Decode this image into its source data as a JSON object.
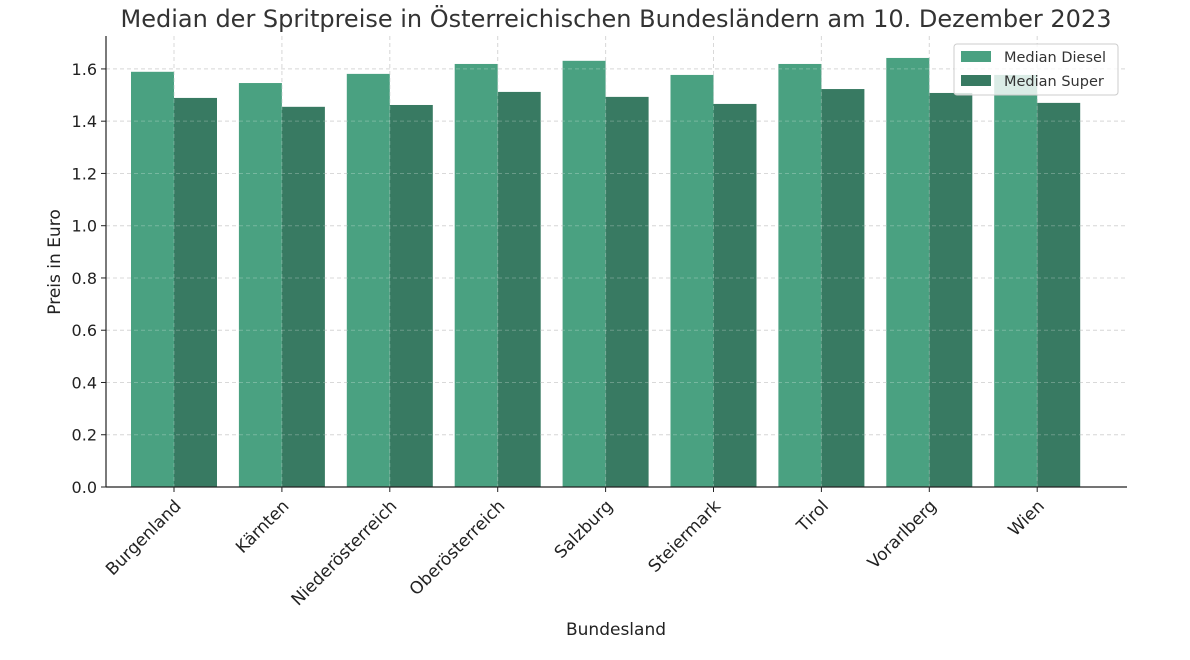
{
  "chart_data": {
    "type": "bar",
    "title": "Median der Spritpreise in Österreichischen Bundesländern am 10. Dezember 2023",
    "xlabel": "Bundesland",
    "ylabel": "Preis in Euro",
    "ylim": [
      0,
      1.726
    ],
    "yticks": [
      0.0,
      0.2,
      0.4,
      0.6,
      0.8,
      1.0,
      1.2,
      1.4,
      1.6
    ],
    "grid": true,
    "legend_position": "top-right",
    "categories": [
      "Burgenland",
      "Kärnten",
      "Niederösterreich",
      "Oberösterreich",
      "Salzburg",
      "Steiermark",
      "Tirol",
      "Vorarlberg",
      "Wien"
    ],
    "series": [
      {
        "name": "Median Diesel",
        "color": "#4aa181",
        "values": [
          1.589,
          1.546,
          1.581,
          1.619,
          1.631,
          1.577,
          1.619,
          1.642,
          1.577
        ]
      },
      {
        "name": "Median Super",
        "color": "#387a62",
        "values": [
          1.489,
          1.455,
          1.462,
          1.512,
          1.493,
          1.466,
          1.523,
          1.508,
          1.47
        ]
      }
    ]
  }
}
